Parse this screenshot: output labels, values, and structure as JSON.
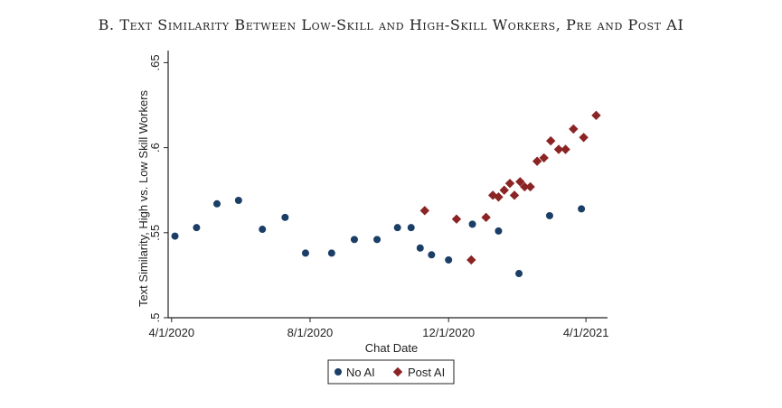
{
  "chart_data": {
    "type": "scatter",
    "title": "B. Text Similarity Between Low-Skill and High-Skill Workers, Pre and Post AI",
    "xlabel": "Chat Date",
    "ylabel": "Text Similarity, High vs. Low Skill Workers",
    "xlim": [
      "2020-03-29",
      "2021-04-20"
    ],
    "ylim": [
      0.5,
      0.655
    ],
    "x_ticks": [
      {
        "value": "2020-04-01",
        "label": "4/1/2020"
      },
      {
        "value": "2020-08-01",
        "label": "8/1/2020"
      },
      {
        "value": "2020-12-01",
        "label": "12/1/2020"
      },
      {
        "value": "2021-04-01",
        "label": "4/1/2021"
      }
    ],
    "y_ticks": [
      {
        "value": 0.5,
        "label": ".5"
      },
      {
        "value": 0.55,
        "label": ".55"
      },
      {
        "value": 0.6,
        "label": ".6"
      },
      {
        "value": 0.65,
        "label": ".65"
      }
    ],
    "grid": false,
    "legend_position": "bottom",
    "series": [
      {
        "name": "No AI",
        "color": "#1a3e66",
        "marker": "circle",
        "points": [
          {
            "x": "2020-04-04",
            "y": 0.548
          },
          {
            "x": "2020-04-23",
            "y": 0.553
          },
          {
            "x": "2020-05-11",
            "y": 0.567
          },
          {
            "x": "2020-05-30",
            "y": 0.569
          },
          {
            "x": "2020-06-20",
            "y": 0.552
          },
          {
            "x": "2020-07-10",
            "y": 0.559
          },
          {
            "x": "2020-07-28",
            "y": 0.538
          },
          {
            "x": "2020-08-20",
            "y": 0.538
          },
          {
            "x": "2020-09-09",
            "y": 0.546
          },
          {
            "x": "2020-09-29",
            "y": 0.546
          },
          {
            "x": "2020-10-17",
            "y": 0.553
          },
          {
            "x": "2020-10-29",
            "y": 0.553
          },
          {
            "x": "2020-11-06",
            "y": 0.541
          },
          {
            "x": "2020-11-16",
            "y": 0.537
          },
          {
            "x": "2020-12-01",
            "y": 0.534
          },
          {
            "x": "2020-12-22",
            "y": 0.555
          },
          {
            "x": "2021-01-14",
            "y": 0.551
          },
          {
            "x": "2021-02-01",
            "y": 0.526
          },
          {
            "x": "2021-02-28",
            "y": 0.56
          },
          {
            "x": "2021-03-28",
            "y": 0.564
          }
        ]
      },
      {
        "name": "Post AI",
        "color": "#8b2424",
        "marker": "diamond",
        "points": [
          {
            "x": "2020-11-10",
            "y": 0.563
          },
          {
            "x": "2020-12-08",
            "y": 0.558
          },
          {
            "x": "2020-12-21",
            "y": 0.534
          },
          {
            "x": "2021-01-03",
            "y": 0.559
          },
          {
            "x": "2021-01-09",
            "y": 0.572
          },
          {
            "x": "2021-01-14",
            "y": 0.571
          },
          {
            "x": "2021-01-19",
            "y": 0.575
          },
          {
            "x": "2021-01-24",
            "y": 0.579
          },
          {
            "x": "2021-01-28",
            "y": 0.572
          },
          {
            "x": "2021-02-02",
            "y": 0.58
          },
          {
            "x": "2021-02-06",
            "y": 0.577
          },
          {
            "x": "2021-02-11",
            "y": 0.577
          },
          {
            "x": "2021-02-17",
            "y": 0.592
          },
          {
            "x": "2021-02-23",
            "y": 0.594
          },
          {
            "x": "2021-03-01",
            "y": 0.604
          },
          {
            "x": "2021-03-08",
            "y": 0.599
          },
          {
            "x": "2021-03-14",
            "y": 0.599
          },
          {
            "x": "2021-03-21",
            "y": 0.611
          },
          {
            "x": "2021-03-30",
            "y": 0.606
          },
          {
            "x": "2021-04-10",
            "y": 0.619
          }
        ]
      }
    ]
  }
}
